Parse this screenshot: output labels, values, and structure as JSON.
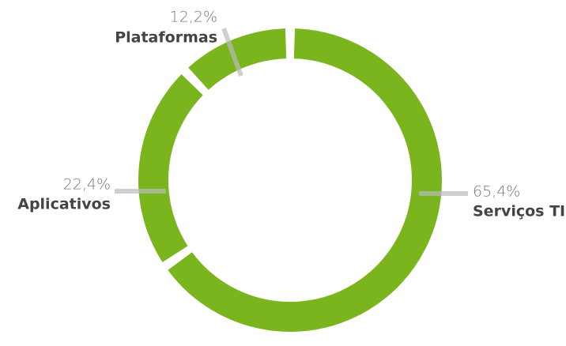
{
  "chart_data": {
    "type": "donut",
    "categories": [
      "Serviços TI",
      "Aplicativos",
      "Plataformas"
    ],
    "values": [
      65.4,
      22.4,
      12.2
    ],
    "value_labels": [
      "65,4%",
      "22,4%",
      "12,2%"
    ],
    "color": "#7ab51d"
  }
}
